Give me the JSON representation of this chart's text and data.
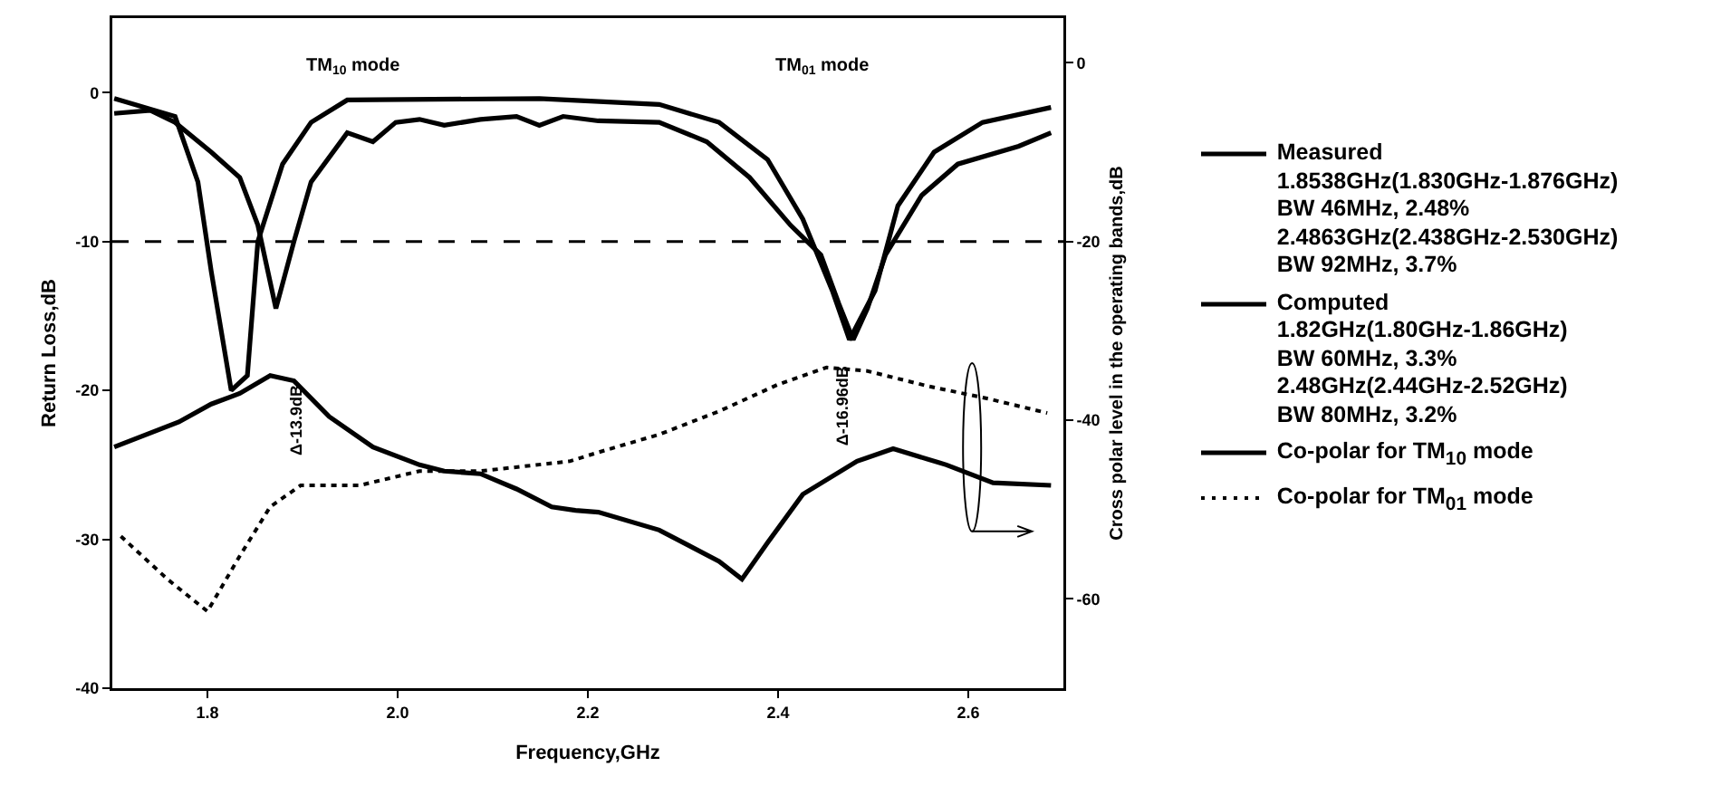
{
  "chart_data": {
    "type": "line",
    "xlabel": "Frequency,GHz",
    "ylabel": "Return Loss,dB",
    "y2label": "Cross polar level in the operating bands,dB",
    "xlim": [
      1.7,
      2.7
    ],
    "xticks": [
      1.8,
      {
        "value": 2,
        "label": "2.0"
      },
      2.2,
      2.4,
      2.6
    ],
    "ylim": [
      -40,
      5
    ],
    "yticks": [
      0,
      -10,
      -20,
      -30,
      -40
    ],
    "y2lim": [
      -70,
      5
    ],
    "y2ticks": [
      0,
      -20,
      -40,
      -60
    ],
    "grid": false,
    "legend": "right",
    "ref_lines": [
      {
        "axis": "y",
        "value": -10,
        "label": null,
        "line_style": "dashed",
        "color": "#000000"
      }
    ],
    "annotations": [
      "TM$_{10}$ mode",
      "TM$_{01}$ mode",
      "Δ-13.9dB",
      "Δ-16.96dB"
    ],
    "series": [
      {
        "name": "Measured\n1.8538GHz(1.830GHz-1.876GHz)\nBW 46MHz, 2.48%\n2.4863GHz(2.438GHz-2.530GHz)\nBW 92MHz, 3.7%",
        "color": "#000000",
        "line_style": "solid",
        "x": [
          1.702,
          1.74,
          1.766,
          1.804,
          1.834,
          1.853,
          1.872,
          1.891,
          1.909,
          1.947,
          1.974,
          1.998,
          2.023,
          2.049,
          2.087,
          2.125,
          2.149,
          2.174,
          2.211,
          2.275,
          2.325,
          2.37,
          2.413,
          2.445,
          2.464,
          2.479,
          2.494,
          2.513,
          2.551,
          2.589,
          2.653,
          2.687
        ],
        "values": [
          -1.4,
          -1.2,
          -2,
          -4,
          -5.7,
          -8.9,
          -14.5,
          -10,
          -6,
          -2.7,
          -3.3,
          -2,
          -1.8,
          -2.2,
          -1.8,
          -1.6,
          -2.2,
          -1.6,
          -1.9,
          -2,
          -3.3,
          -5.7,
          -8.9,
          -10.9,
          -14.2,
          -16.6,
          -14.5,
          -10.9,
          -6.9,
          -4.8,
          -3.6,
          -2.7
        ]
      },
      {
        "name": "Computed\n1.82GHz(1.80GHz-1.86GHz)\nBW 60MHz, 3.3%\n2.48GHz(2.44GHz-2.52GHz)\nBW 80MHz, 3.2%",
        "color": "#000000",
        "line_style": "solid",
        "x": [
          1.702,
          1.766,
          1.79,
          1.804,
          1.825,
          1.842,
          1.853,
          1.879,
          1.909,
          1.947,
          2.149,
          2.275,
          2.338,
          2.389,
          2.426,
          2.457,
          2.475,
          2.502,
          2.526,
          2.564,
          2.615,
          2.687
        ],
        "values": [
          -0.4,
          -1.6,
          -6,
          -12,
          -20,
          -19,
          -10,
          -4.8,
          -2,
          -0.5,
          -0.4,
          -0.8,
          -2,
          -4.5,
          -8.5,
          -13.3,
          -16.6,
          -13.3,
          -7.6,
          -4,
          -2,
          -1.0
        ]
      },
      {
        "name": "Co-polar for TM$_{10}$ mode",
        "color": "#000000",
        "line_style": "solid",
        "axis": "y2",
        "x": [
          1.702,
          1.77,
          1.804,
          1.834,
          1.866,
          1.891,
          1.928,
          1.974,
          2.023,
          2.049,
          2.087,
          2.125,
          2.162,
          2.187,
          2.211,
          2.275,
          2.338,
          2.362,
          2.389,
          2.426,
          2.483,
          2.521,
          2.577,
          2.626,
          2.687
        ],
        "values": [
          -43,
          -40.2,
          -38.2,
          -37,
          -35,
          -35.6,
          -39.6,
          -43,
          -45,
          -45.7,
          -46,
          -47.7,
          -49.7,
          -50.1,
          -50.3,
          -52.3,
          -55.8,
          -57.8,
          -53.7,
          -48.3,
          -44.6,
          -43.2,
          -45,
          -47,
          -47.3
        ]
      },
      {
        "name": "Co-polar for TM$_{01}$ mode",
        "color": "#000000",
        "line_style": "dotted",
        "axis": "y2",
        "x": [
          1.709,
          1.758,
          1.8,
          1.834,
          1.866,
          1.898,
          1.96,
          2.023,
          2.087,
          2.181,
          2.211,
          2.275,
          2.338,
          2.4,
          2.451,
          2.494,
          2.558,
          2.621,
          2.683
        ],
        "values": [
          -53,
          -57.8,
          -61.4,
          -55.2,
          -49.7,
          -47.3,
          -47.3,
          -45.7,
          -45.7,
          -44.6,
          -43.6,
          -41.6,
          -39,
          -36,
          -34.1,
          -34.5,
          -36.2,
          -37.6,
          -39.2
        ]
      }
    ]
  }
}
